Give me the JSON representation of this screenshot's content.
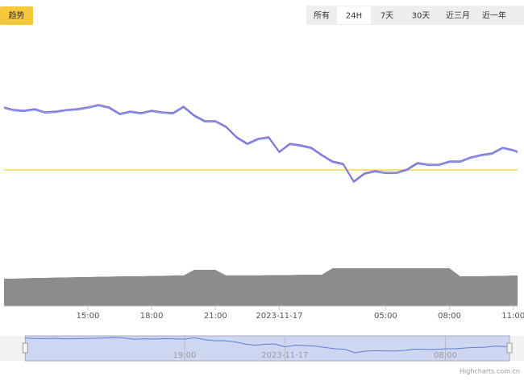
{
  "ui": {
    "tab": "趋势",
    "ranges": [
      "所有",
      "24H",
      "7天",
      "30天",
      "近三月",
      "近一年"
    ],
    "selected_range": 1,
    "credit": "Highcharts.com.cn"
  },
  "chart_data": {
    "type": "line",
    "x": [
      11.06,
      11.5,
      12,
      12.5,
      13,
      13.5,
      14,
      14.5,
      15,
      15.5,
      16,
      16.5,
      17,
      17.5,
      18,
      18.5,
      19,
      19.5,
      20,
      20.5,
      21,
      21.5,
      22,
      22.5,
      23,
      23.5,
      24,
      24.5,
      25,
      25.5,
      26,
      26.5,
      27,
      27.5,
      28,
      28.5,
      29,
      29.5,
      30,
      30.5,
      31,
      31.5,
      32,
      32.5,
      33,
      33.5,
      34,
      34.5,
      35,
      35.2
    ],
    "xlim": [
      11.06,
      35.2
    ],
    "xticks": [
      {
        "value": 15,
        "label": "15:00"
      },
      {
        "value": 18,
        "label": "18:00"
      },
      {
        "value": 21,
        "label": "21:00"
      },
      {
        "value": 24,
        "label": "2023-11-17"
      },
      {
        "value": 29,
        "label": "05:00"
      },
      {
        "value": 32,
        "label": "08:00"
      },
      {
        "value": 35,
        "label": "11:00"
      }
    ],
    "ylim": [
      0,
      100
    ],
    "y2lim": [
      0,
      47
    ],
    "series": [
      {
        "color": "#8e6bd8",
        "values": [
          86.2,
          83.8,
          83.1,
          84.6,
          81.5,
          82.3,
          83.8,
          84.6,
          86.2,
          88.5,
          86.2,
          80,
          82.3,
          80.8,
          83.1,
          81.5,
          80.8,
          86.9,
          78.5,
          73.1,
          73.1,
          67.7,
          57.7,
          51.5,
          56.2,
          57.7,
          43.8,
          51.5,
          50,
          47.7,
          40.8,
          34.6,
          32.3,
          15.4,
          23.1,
          25.4,
          23.8,
          23.8,
          26.9,
          33.1,
          31.5,
          31.5,
          34.6,
          34.6,
          38.5,
          40.8,
          42.3,
          47.7,
          45.4,
          43.8
        ]
      },
      {
        "color": "#8c8c8c",
        "axis": "y2",
        "values": [
          34,
          34,
          34.5,
          35,
          35,
          35.5,
          35.5,
          36,
          36,
          36.5,
          36.5,
          37,
          37,
          37,
          37.5,
          37.5,
          38,
          38,
          45,
          45,
          45,
          38,
          38,
          38,
          38,
          38.5,
          38.5,
          38.5,
          39,
          39,
          39,
          47,
          47,
          47,
          47,
          47,
          47,
          47,
          47,
          47,
          47,
          47,
          47,
          37,
          37,
          37,
          37.5,
          37.5,
          38,
          38
        ]
      }
    ],
    "reference_line": {
      "value": 26.2,
      "color": "#f5d742"
    },
    "navigator": {
      "xlim": [
        10,
        35.6
      ],
      "xticks": [
        {
          "value": 19,
          "label": "19:00"
        },
        {
          "value": 24,
          "label": "2023-11-17"
        },
        {
          "value": 32,
          "label": "08:00"
        }
      ]
    }
  }
}
